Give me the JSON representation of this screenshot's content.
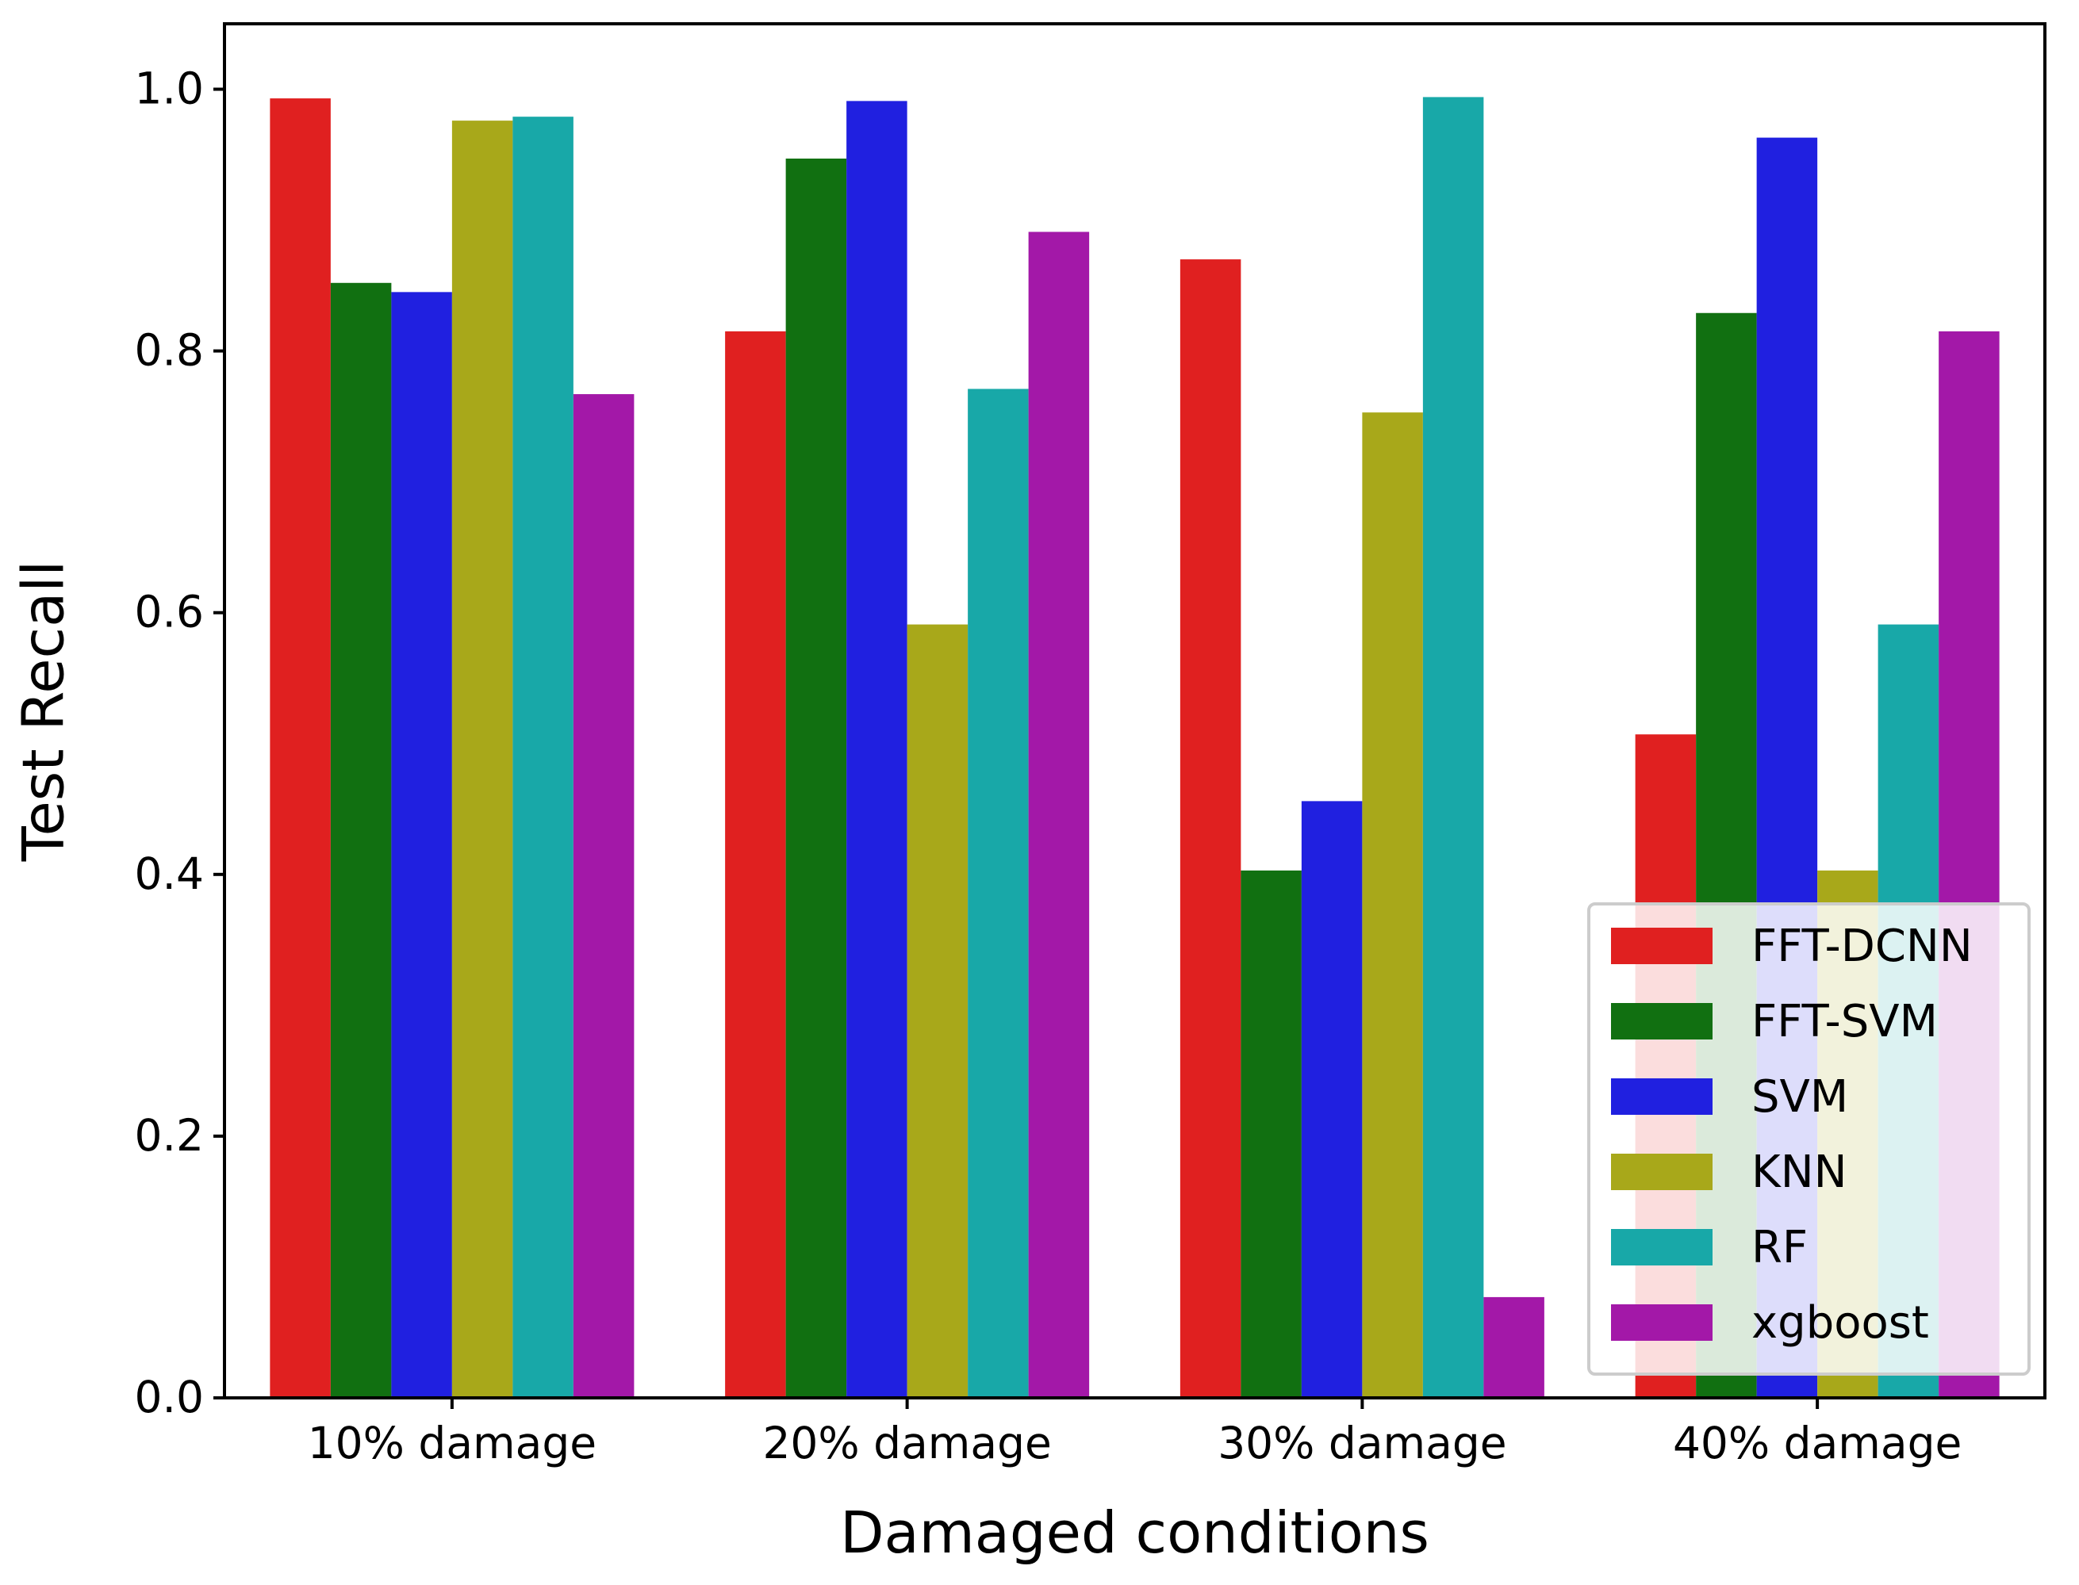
{
  "chart_data": {
    "type": "bar",
    "title": "",
    "xlabel": "Damaged conditions",
    "ylabel": "Test Recall",
    "ylim": [
      0,
      1.05
    ],
    "yticks": [
      0.0,
      0.2,
      0.4,
      0.6,
      0.8,
      1.0
    ],
    "ytick_labels": [
      "0.0",
      "0.2",
      "0.4",
      "0.6",
      "0.8",
      "1.0"
    ],
    "grid": false,
    "legend_position": "bottom-right",
    "categories": [
      "10% damage",
      "20% damage",
      "30% damage",
      "40% damage"
    ],
    "series": [
      {
        "name": "FFT-DCNN",
        "color": "#e02020",
        "values": [
          0.993,
          0.815,
          0.87,
          0.507
        ]
      },
      {
        "name": "FFT-SVM",
        "color": "#117011",
        "values": [
          0.852,
          0.947,
          0.403,
          0.829
        ]
      },
      {
        "name": "SVM",
        "color": "#2020e0",
        "values": [
          0.845,
          0.991,
          0.456,
          0.963
        ]
      },
      {
        "name": "KNN",
        "color": "#a8a81a",
        "values": [
          0.976,
          0.591,
          0.753,
          0.403
        ]
      },
      {
        "name": "RF",
        "color": "#18a8a8",
        "values": [
          0.979,
          0.771,
          0.994,
          0.591
        ]
      },
      {
        "name": "xgboost",
        "color": "#a318a8",
        "values": [
          0.767,
          0.891,
          0.077,
          0.815
        ]
      }
    ]
  }
}
